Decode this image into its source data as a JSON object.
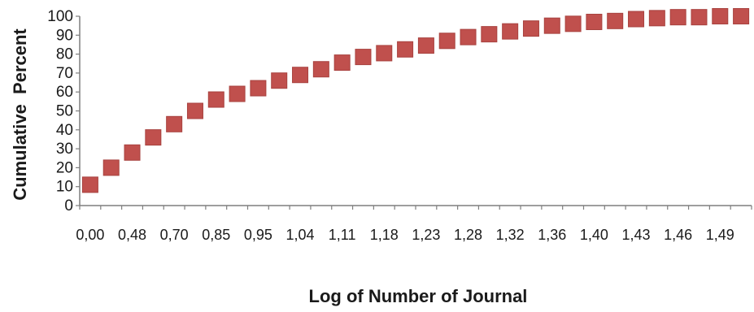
{
  "chart_data": {
    "type": "scatter",
    "title": "",
    "xlabel": "Log of Number of Journal",
    "ylabel": "Cumulative  Percent",
    "ylim": [
      0,
      100
    ],
    "yticks": [
      0,
      10,
      20,
      30,
      40,
      50,
      60,
      70,
      80,
      90,
      100
    ],
    "x_tick_labels": [
      "0,00",
      "0,48",
      "0,70",
      "0,85",
      "0,95",
      "1,04",
      "1,11",
      "1,18",
      "1,23",
      "1,28",
      "1,32",
      "1,36",
      "1,40",
      "1,43",
      "1,46",
      "1,49"
    ],
    "grid": false,
    "legend": "none",
    "marker": "square",
    "marker_color": "#c0504d",
    "series": [
      {
        "values": [
          11,
          20,
          28,
          36,
          43,
          50,
          56,
          59,
          62,
          66,
          69,
          72,
          75.5,
          78.5,
          80.5,
          82.5,
          84.5,
          87,
          89,
          90.5,
          92,
          93.5,
          95,
          96,
          97,
          97.5,
          98.5,
          99,
          99.5,
          99.5,
          100,
          100
        ]
      }
    ]
  }
}
